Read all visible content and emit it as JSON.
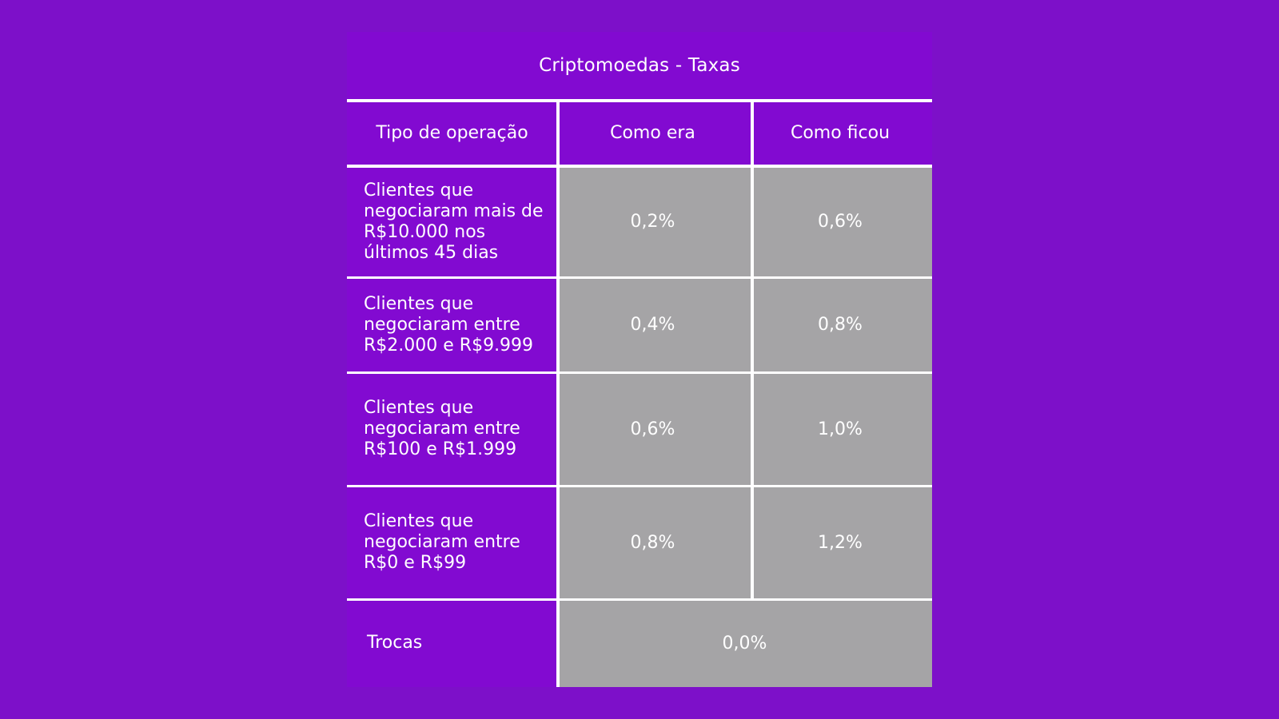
{
  "title": "Criptomoedas - Taxas",
  "headers": [
    "Tipo de operação",
    "Como era",
    "Como ficou"
  ],
  "rows": [
    {
      "label": "Clientes que negociaram mais de R$10.000 nos últimos 45 dias",
      "before": "0,2%",
      "after": "0,6%"
    },
    {
      "label": "Clientes que negociaram entre R$2.000 e R$9.999",
      "before": "0,4%",
      "after": "0,8%"
    },
    {
      "label": "Clientes que negociaram entre R$100 e R$1.999",
      "before": "0,6%",
      "after": "1,0%"
    },
    {
      "label": "Clientes que negociaram entre R$0 e R$99",
      "before": "0,8%",
      "after": "1,2%"
    }
  ],
  "footer": {
    "label": "Trocas",
    "value": "0,0%"
  },
  "colors": {
    "background": "#7d10c9",
    "panel": "#820ad1",
    "value_cells": "#a5a4a6"
  }
}
